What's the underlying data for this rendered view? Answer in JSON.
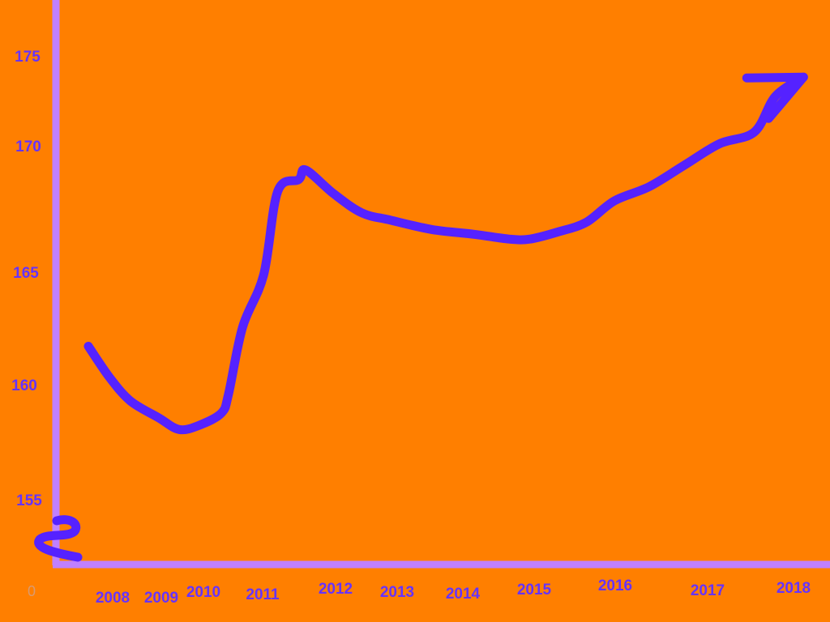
{
  "colors": {
    "background": "#FF7F00",
    "axis": "#C080FF",
    "line": "#5522FF",
    "tick_text": "#6633FF",
    "zero_label": "#D99A70"
  },
  "chart_data": {
    "type": "line",
    "title": "",
    "xlabel": "",
    "ylabel": "",
    "x_ticks": [
      "2008",
      "2009",
      "2010",
      "2011",
      "2012",
      "2013",
      "2014",
      "2015",
      "2016",
      "2017",
      "2018"
    ],
    "y_ticks": [
      "155",
      "160",
      "165",
      "170",
      "175"
    ],
    "origin_label": "0",
    "y_axis_break": true,
    "end_arrow": true,
    "ylim": [
      152,
      177
    ],
    "grid": false,
    "series": [
      {
        "x": [
          2008.0,
          2008.3,
          2008.6,
          2009.0,
          2009.3,
          2009.6,
          2009.9,
          2010.0,
          2010.2,
          2010.5,
          2010.7,
          2011.0,
          2011.1,
          2011.5,
          2011.9,
          2012.3,
          2012.9,
          2013.5,
          2014.0,
          2014.3,
          2014.7,
          2015.1,
          2015.5,
          2016.0,
          2016.5,
          2017.0,
          2017.5,
          2017.8,
          2018.2
        ],
        "y": [
          161.6,
          160.3,
          159.3,
          158.6,
          158.1,
          158.3,
          158.8,
          159.6,
          162.4,
          164.6,
          168.1,
          168.6,
          169.0,
          168.0,
          167.2,
          166.9,
          166.5,
          166.3,
          166.1,
          166.1,
          166.4,
          166.8,
          167.7,
          168.3,
          169.2,
          170.1,
          170.6,
          172.1,
          172.9
        ]
      }
    ]
  }
}
